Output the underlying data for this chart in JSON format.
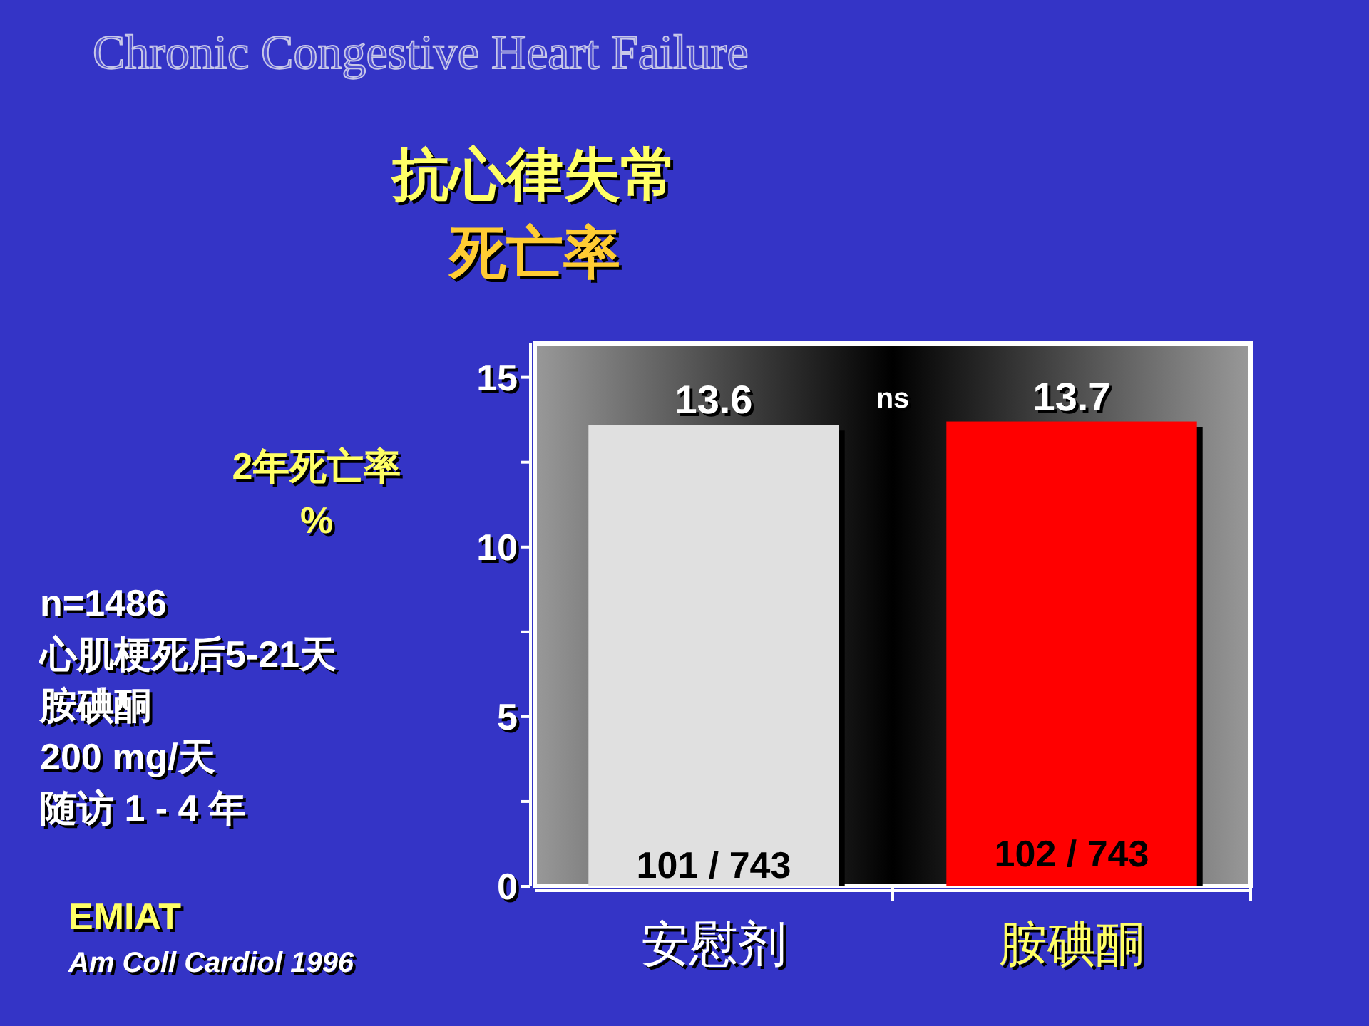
{
  "chart_data": {
    "type": "bar",
    "title": "Chronic Congestive Heart Failure",
    "subtitle": "抗心律失常",
    "ylabel": "2年死亡率 %",
    "categories": [
      "安慰剂",
      "胺碘酮"
    ],
    "values": [
      13.6,
      13.7
    ],
    "colors": [
      "#e0e0e0",
      "#ff0000"
    ],
    "ylim": [
      0,
      16
    ],
    "yticks": [
      0,
      {
        "value": 2.5,
        "label": null
      },
      5,
      {
        "value": 7.5,
        "label": null
      },
      10,
      {
        "value": 12.5,
        "label": null
      },
      15
    ],
    "data_labels": true,
    "grid": false,
    "annotations": [
      "n=1486",
      "心肌梗死后5-21天",
      "胺碘酮",
      "200 mg/天",
      "随访 1 - 4 年",
      "EMIAT",
      "Am Coll Cardiol 1996",
      "ns",
      "死亡率",
      {
        "text": "101 / 743",
        "x": "安慰剂",
        "y": 0
      },
      {
        "text": "102 / 743",
        "x": "胺碘酮",
        "y": 0
      }
    ]
  }
}
